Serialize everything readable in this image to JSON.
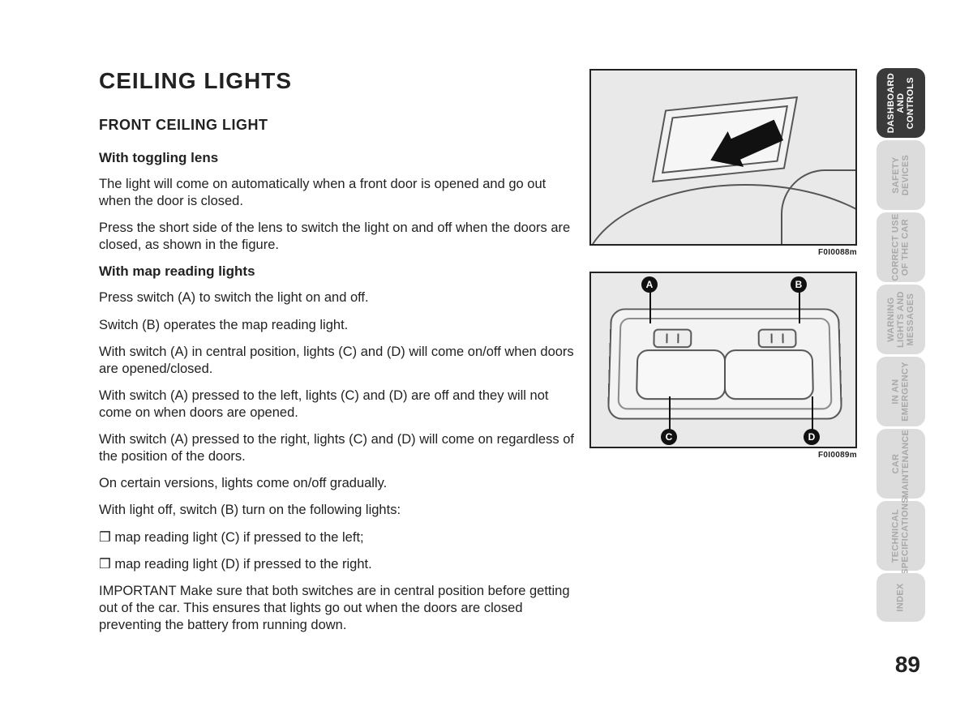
{
  "page_number": "89",
  "title": "CEILING LIGHTS",
  "subtitle": "FRONT CEILING LIGHT",
  "section1": {
    "heading": "With toggling lens",
    "p1": "The light will come on automatically when a front door is opened and go out when the door is closed.",
    "p2": "Press the short side of the lens to switch the light on and off when the doors are closed, as shown in the figure."
  },
  "section2": {
    "heading": "With map reading lights",
    "p1": "Press switch (A) to switch the light on and off.",
    "p2": "Switch (B) operates the map reading light.",
    "p3": "With switch (A) in central position, lights (C) and (D) will come on/off when doors are opened/closed.",
    "p4": "With switch (A) pressed to the left, lights (C) and (D) are off and they will not come on when doors are opened.",
    "p5": "With switch (A) pressed to the right, lights (C) and (D) will come on regardless of the position of the doors.",
    "p6": "On certain versions, lights come on/off gradually.",
    "p7": "With light off, switch (B) turn on the following lights:",
    "li1": "❒ map reading light (C) if pressed to the left;",
    "li2": "❒ map reading light (D) if pressed to the right.",
    "important": "IMPORTANT Make sure that both switches are in central position before getting out of the car. This ensures that lights go out when the doors are closed preventing the battery from running down."
  },
  "figures": {
    "fig1_caption": "F0I0088m",
    "fig2_caption": "F0I0089m",
    "labels": {
      "A": "A",
      "B": "B",
      "C": "C",
      "D": "D"
    }
  },
  "tabs": [
    {
      "label": "DASHBOARD\nAND\nCONTROLS",
      "active": true
    },
    {
      "label": "SAFETY\nDEVICES",
      "active": false
    },
    {
      "label": "CORRECT USE\nOF THE CAR",
      "active": false
    },
    {
      "label": "WARNING\nLIGHTS AND\nMESSAGES",
      "active": false
    },
    {
      "label": "IN AN\nEMERGENCY",
      "active": false
    },
    {
      "label": "CAR\nMAINTENANCE",
      "active": false
    },
    {
      "label": "TECHNICAL\nSPECIFICATIONS",
      "active": false
    },
    {
      "label": "INDEX",
      "active": false,
      "short": true
    }
  ],
  "colors": {
    "text": "#222222",
    "tab_inactive_bg": "#dcdcdc",
    "tab_inactive_text": "#a9a9a9",
    "tab_active_bg": "#3a3a3a",
    "tab_active_text": "#ffffff",
    "figure_bg": "#e9e9e9",
    "figure_border": "#222222"
  }
}
